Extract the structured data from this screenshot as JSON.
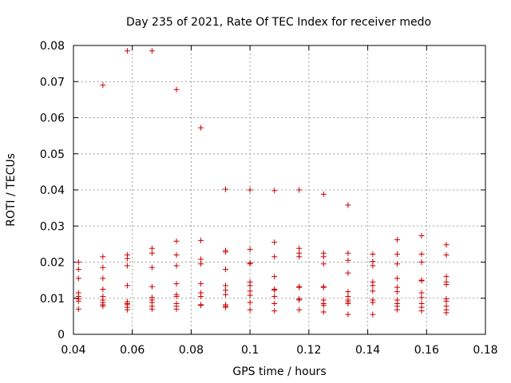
{
  "chart_data": {
    "type": "scatter",
    "title": "Day 235 of 2021, Rate Of TEC Index for receiver medo",
    "xlabel": "GPS time / hours",
    "ylabel": "ROTI / TECUs",
    "xlim": [
      0.04,
      0.18
    ],
    "ylim": [
      0,
      0.08
    ],
    "x_ticks": [
      0.04,
      0.06,
      0.08,
      0.1,
      0.12,
      0.14,
      0.16,
      0.18
    ],
    "x_tick_labels": [
      "0.04",
      "0.06",
      "0.08",
      "0.1",
      "0.12",
      "0.14",
      "0.16",
      "0.18"
    ],
    "y_ticks": [
      0,
      0.01,
      0.02,
      0.03,
      0.04,
      0.05,
      0.06,
      0.07,
      0.08
    ],
    "y_tick_labels": [
      "0",
      "0.01",
      "0.02",
      "0.03",
      "0.04",
      "0.05",
      "0.06",
      "0.07",
      "0.08"
    ],
    "grid": true,
    "marker": "+",
    "color": "#cc0000",
    "series": [
      {
        "name": "ROTI",
        "points": [
          [
            0.0417,
            0.02
          ],
          [
            0.0417,
            0.018
          ],
          [
            0.0417,
            0.0155
          ],
          [
            0.0417,
            0.0115
          ],
          [
            0.0417,
            0.0105
          ],
          [
            0.0417,
            0.0098
          ],
          [
            0.0417,
            0.0092
          ],
          [
            0.0417,
            0.007
          ],
          [
            0.05,
            0.069
          ],
          [
            0.05,
            0.0215
          ],
          [
            0.05,
            0.0185
          ],
          [
            0.05,
            0.0155
          ],
          [
            0.05,
            0.0125
          ],
          [
            0.05,
            0.0105
          ],
          [
            0.05,
            0.0095
          ],
          [
            0.05,
            0.0088
          ],
          [
            0.05,
            0.0082
          ],
          [
            0.05,
            0.0078
          ],
          [
            0.0583,
            0.0785
          ],
          [
            0.0583,
            0.022
          ],
          [
            0.0583,
            0.021
          ],
          [
            0.0583,
            0.019
          ],
          [
            0.0583,
            0.0135
          ],
          [
            0.0583,
            0.009
          ],
          [
            0.0583,
            0.0085
          ],
          [
            0.0583,
            0.0082
          ],
          [
            0.0583,
            0.0075
          ],
          [
            0.0583,
            0.0068
          ],
          [
            0.0667,
            0.0785
          ],
          [
            0.0667,
            0.0238
          ],
          [
            0.0667,
            0.0225
          ],
          [
            0.0667,
            0.0185
          ],
          [
            0.0667,
            0.0132
          ],
          [
            0.0667,
            0.0102
          ],
          [
            0.0667,
            0.0095
          ],
          [
            0.0667,
            0.0088
          ],
          [
            0.0667,
            0.0078
          ],
          [
            0.0667,
            0.007
          ],
          [
            0.075,
            0.0678
          ],
          [
            0.075,
            0.0258
          ],
          [
            0.075,
            0.022
          ],
          [
            0.075,
            0.019
          ],
          [
            0.075,
            0.014
          ],
          [
            0.075,
            0.011
          ],
          [
            0.075,
            0.0105
          ],
          [
            0.075,
            0.0085
          ],
          [
            0.075,
            0.0078
          ],
          [
            0.075,
            0.007
          ],
          [
            0.0833,
            0.0572
          ],
          [
            0.0833,
            0.026
          ],
          [
            0.0833,
            0.0208
          ],
          [
            0.0833,
            0.0195
          ],
          [
            0.0833,
            0.014
          ],
          [
            0.0833,
            0.0115
          ],
          [
            0.0833,
            0.0105
          ],
          [
            0.0833,
            0.0082
          ],
          [
            0.0833,
            0.008
          ],
          [
            0.0917,
            0.0402
          ],
          [
            0.0917,
            0.0232
          ],
          [
            0.0917,
            0.0228
          ],
          [
            0.0917,
            0.018
          ],
          [
            0.0917,
            0.0135
          ],
          [
            0.0917,
            0.0122
          ],
          [
            0.0917,
            0.011
          ],
          [
            0.0917,
            0.0082
          ],
          [
            0.0917,
            0.0078
          ],
          [
            0.0917,
            0.0075
          ],
          [
            0.1,
            0.04
          ],
          [
            0.1,
            0.0235
          ],
          [
            0.1,
            0.0198
          ],
          [
            0.1,
            0.0195
          ],
          [
            0.1,
            0.0145
          ],
          [
            0.1,
            0.0135
          ],
          [
            0.1,
            0.012
          ],
          [
            0.1,
            0.0108
          ],
          [
            0.1,
            0.0088
          ],
          [
            0.1,
            0.0068
          ],
          [
            0.1083,
            0.0398
          ],
          [
            0.1083,
            0.0255
          ],
          [
            0.1083,
            0.0215
          ],
          [
            0.1083,
            0.016
          ],
          [
            0.1083,
            0.0125
          ],
          [
            0.1083,
            0.0122
          ],
          [
            0.1083,
            0.0105
          ],
          [
            0.1083,
            0.0085
          ],
          [
            0.1083,
            0.0065
          ],
          [
            0.1167,
            0.04
          ],
          [
            0.1167,
            0.0238
          ],
          [
            0.1167,
            0.0225
          ],
          [
            0.1167,
            0.0215
          ],
          [
            0.1167,
            0.0132
          ],
          [
            0.1167,
            0.013
          ],
          [
            0.1167,
            0.0098
          ],
          [
            0.1167,
            0.0095
          ],
          [
            0.1167,
            0.0068
          ],
          [
            0.125,
            0.0388
          ],
          [
            0.125,
            0.0225
          ],
          [
            0.125,
            0.0215
          ],
          [
            0.125,
            0.0195
          ],
          [
            0.125,
            0.0132
          ],
          [
            0.125,
            0.013
          ],
          [
            0.125,
            0.0095
          ],
          [
            0.125,
            0.0085
          ],
          [
            0.125,
            0.008
          ],
          [
            0.125,
            0.0062
          ],
          [
            0.1333,
            0.0358
          ],
          [
            0.1333,
            0.0225
          ],
          [
            0.1333,
            0.0205
          ],
          [
            0.1333,
            0.017
          ],
          [
            0.1333,
            0.0118
          ],
          [
            0.1333,
            0.0105
          ],
          [
            0.1333,
            0.0095
          ],
          [
            0.1333,
            0.009
          ],
          [
            0.1333,
            0.0085
          ],
          [
            0.1333,
            0.0055
          ],
          [
            0.1417,
            0.0222
          ],
          [
            0.1417,
            0.0202
          ],
          [
            0.1417,
            0.019
          ],
          [
            0.1417,
            0.0145
          ],
          [
            0.1417,
            0.0135
          ],
          [
            0.1417,
            0.012
          ],
          [
            0.1417,
            0.0095
          ],
          [
            0.1417,
            0.0088
          ],
          [
            0.1417,
            0.0055
          ],
          [
            0.15,
            0.0262
          ],
          [
            0.15,
            0.0222
          ],
          [
            0.15,
            0.0195
          ],
          [
            0.15,
            0.0155
          ],
          [
            0.15,
            0.013
          ],
          [
            0.15,
            0.0118
          ],
          [
            0.15,
            0.0095
          ],
          [
            0.15,
            0.0085
          ],
          [
            0.15,
            0.0078
          ],
          [
            0.15,
            0.0068
          ],
          [
            0.1583,
            0.0273
          ],
          [
            0.1583,
            0.0222
          ],
          [
            0.1583,
            0.02
          ],
          [
            0.1583,
            0.015
          ],
          [
            0.1583,
            0.0148
          ],
          [
            0.1583,
            0.0115
          ],
          [
            0.1583,
            0.0102
          ],
          [
            0.1583,
            0.0085
          ],
          [
            0.1583,
            0.0075
          ],
          [
            0.1583,
            0.0065
          ],
          [
            0.1667,
            0.0248
          ],
          [
            0.1667,
            0.022
          ],
          [
            0.1667,
            0.016
          ],
          [
            0.1667,
            0.0145
          ],
          [
            0.1667,
            0.0138
          ],
          [
            0.1667,
            0.0098
          ],
          [
            0.1667,
            0.0092
          ],
          [
            0.1667,
            0.0078
          ],
          [
            0.1667,
            0.0068
          ],
          [
            0.1667,
            0.006
          ]
        ]
      }
    ]
  }
}
